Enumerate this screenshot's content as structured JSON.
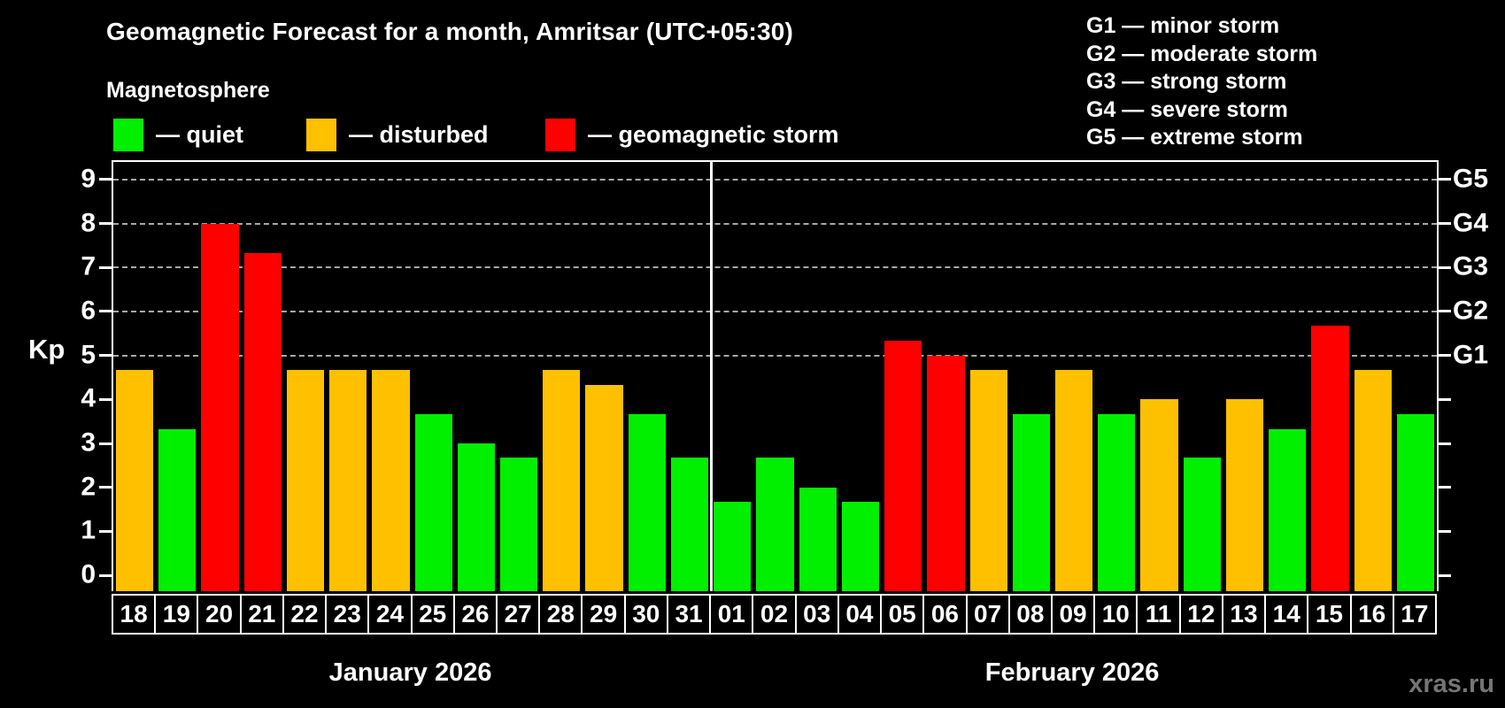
{
  "header": {
    "title": "Geomagnetic Forecast for a month, Amritsar (UTC+05:30)",
    "subtitle": "Magnetosphere"
  },
  "legend": {
    "items": [
      {
        "status": "quiet",
        "label": "— quiet"
      },
      {
        "status": "disturbed",
        "label": "— disturbed"
      },
      {
        "status": "storm",
        "label": "— geomagnetic storm"
      }
    ]
  },
  "g_legend": {
    "lines": [
      "G1 — minor storm",
      "G2 — moderate storm",
      "G3 — strong storm",
      "G4 — severe storm",
      "G5 — extreme storm"
    ]
  },
  "colors": {
    "quiet": "#00f000",
    "disturbed": "#ffc000",
    "storm": "#ff0000",
    "background": "#000000",
    "text": "#ffffff",
    "grid": "#a8a8a8",
    "watermark": "#757575"
  },
  "chart_data": {
    "type": "bar",
    "title": "Geomagnetic Forecast for a month, Amritsar (UTC+05:30)",
    "xlabel": "",
    "ylabel": "Kp",
    "ylim": [
      0,
      9
    ],
    "display_ylim": [
      -0.36,
      9.4
    ],
    "grid": "dashed horizontal lines at Kp 5-9 (G1-G5)",
    "legend_position": "top-left",
    "y_ticks": [
      0,
      1,
      2,
      3,
      4,
      5,
      6,
      7,
      8,
      9
    ],
    "gridline_levels": [
      5,
      6,
      7,
      8,
      9
    ],
    "right_axis_labels": [
      {
        "label": "G1",
        "kp": 5
      },
      {
        "label": "G2",
        "kp": 6
      },
      {
        "label": "G3",
        "kp": 7
      },
      {
        "label": "G4",
        "kp": 8
      },
      {
        "label": "G5",
        "kp": 9
      }
    ],
    "months": [
      {
        "label": "January 2026",
        "days": 14
      },
      {
        "label": "February 2026",
        "days": 17
      }
    ],
    "categories": [
      "18",
      "19",
      "20",
      "21",
      "22",
      "23",
      "24",
      "25",
      "26",
      "27",
      "28",
      "29",
      "30",
      "31",
      "01",
      "02",
      "03",
      "04",
      "05",
      "06",
      "07",
      "08",
      "09",
      "10",
      "11",
      "12",
      "13",
      "14",
      "15",
      "16",
      "17"
    ],
    "bars": [
      {
        "day": "18",
        "kp": 4.67,
        "status": "disturbed"
      },
      {
        "day": "19",
        "kp": 3.33,
        "status": "quiet"
      },
      {
        "day": "20",
        "kp": 8.0,
        "status": "storm"
      },
      {
        "day": "21",
        "kp": 7.33,
        "status": "storm"
      },
      {
        "day": "22",
        "kp": 4.67,
        "status": "disturbed"
      },
      {
        "day": "23",
        "kp": 4.67,
        "status": "disturbed"
      },
      {
        "day": "24",
        "kp": 4.67,
        "status": "disturbed"
      },
      {
        "day": "25",
        "kp": 3.67,
        "status": "quiet"
      },
      {
        "day": "26",
        "kp": 3.0,
        "status": "quiet"
      },
      {
        "day": "27",
        "kp": 2.67,
        "status": "quiet"
      },
      {
        "day": "28",
        "kp": 4.67,
        "status": "disturbed"
      },
      {
        "day": "29",
        "kp": 4.33,
        "status": "disturbed"
      },
      {
        "day": "30",
        "kp": 3.67,
        "status": "quiet"
      },
      {
        "day": "31",
        "kp": 2.67,
        "status": "quiet"
      },
      {
        "day": "01",
        "kp": 1.67,
        "status": "quiet"
      },
      {
        "day": "02",
        "kp": 2.67,
        "status": "quiet"
      },
      {
        "day": "03",
        "kp": 2.0,
        "status": "quiet"
      },
      {
        "day": "04",
        "kp": 1.67,
        "status": "quiet"
      },
      {
        "day": "05",
        "kp": 5.33,
        "status": "storm"
      },
      {
        "day": "06",
        "kp": 5.0,
        "status": "storm"
      },
      {
        "day": "07",
        "kp": 4.67,
        "status": "disturbed"
      },
      {
        "day": "08",
        "kp": 3.67,
        "status": "quiet"
      },
      {
        "day": "09",
        "kp": 4.67,
        "status": "disturbed"
      },
      {
        "day": "10",
        "kp": 3.67,
        "status": "quiet"
      },
      {
        "day": "11",
        "kp": 4.0,
        "status": "disturbed"
      },
      {
        "day": "12",
        "kp": 2.67,
        "status": "quiet"
      },
      {
        "day": "13",
        "kp": 4.0,
        "status": "disturbed"
      },
      {
        "day": "14",
        "kp": 3.33,
        "status": "quiet"
      },
      {
        "day": "15",
        "kp": 5.67,
        "status": "storm"
      },
      {
        "day": "16",
        "kp": 4.67,
        "status": "disturbed"
      },
      {
        "day": "17",
        "kp": 3.67,
        "status": "quiet"
      }
    ]
  },
  "watermark": "xras.ru"
}
